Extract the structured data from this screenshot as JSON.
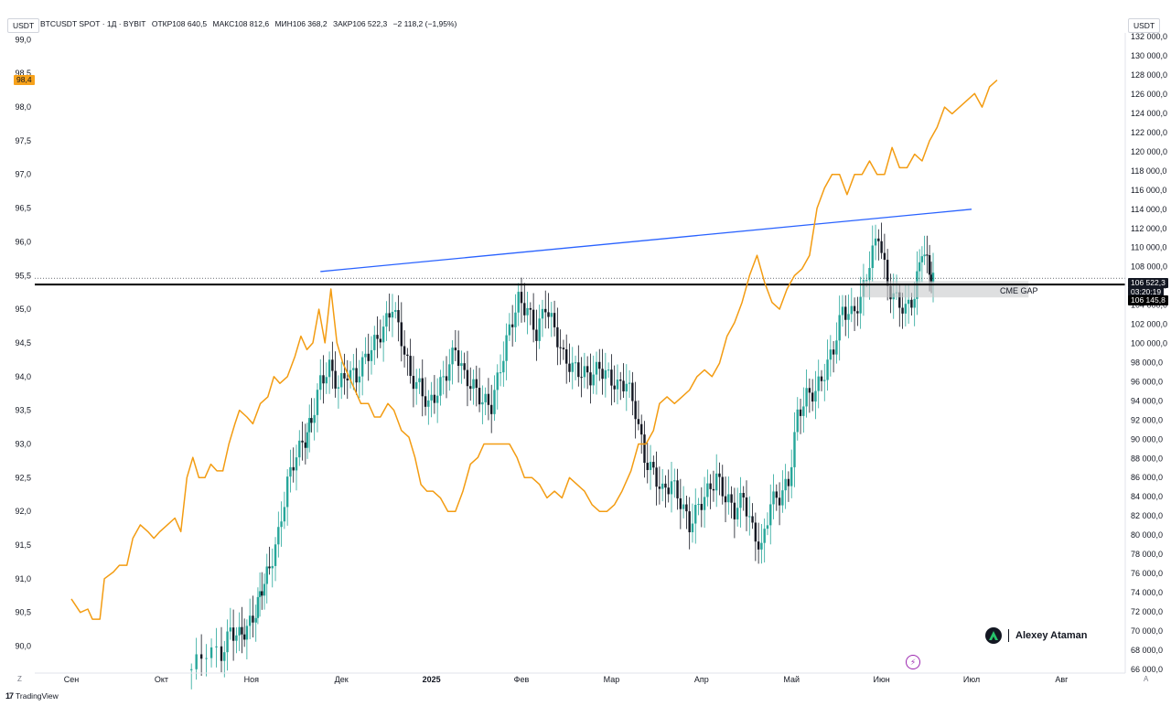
{
  "header": {
    "symbol": "BTCUSDT SPOT · 1Д · BYBIT",
    "open": "ОТКР108 640,5",
    "high": "МАКС108 812,6",
    "low": "МИН106 368,2",
    "close": "ЗАКР106 522,3",
    "change": "−2 118,2 (−1,95%)"
  },
  "units": {
    "left": "USDT",
    "right": "USDT"
  },
  "badges": {
    "left_value": "98,4",
    "price_current": "106 522,3",
    "countdown": "03:20:19",
    "level": "106 145,8"
  },
  "annotation": {
    "cme_gap_label": "CME GAP"
  },
  "watermark": {
    "author": "Alexey Ataman"
  },
  "footer": {
    "brand": "TradingView",
    "corner_left": "Z",
    "corner_right": "A"
  },
  "chart_data": {
    "type": "line",
    "title": "BTCUSDT SPOT · 1Д · BYBIT",
    "x": [
      "Сен",
      "Окт",
      "Ноя",
      "Дек",
      "2025",
      "Фев",
      "Мар",
      "Апр",
      "Май",
      "Июн",
      "Июл",
      "Авг"
    ],
    "left_axis": {
      "label": "USDT",
      "ticks": [
        "99,0",
        "98,5",
        "98,0",
        "97,5",
        "97,0",
        "96,5",
        "96,0",
        "95,5",
        "95,0",
        "94,5",
        "94,0",
        "93,5",
        "93,0",
        "92,5",
        "92,0",
        "91,5",
        "91,0",
        "90,5",
        "90,0"
      ],
      "ylim": [
        89.6,
        99.1
      ]
    },
    "right_axis": {
      "label": "USDT",
      "ticks": [
        "132 000,0",
        "130 000,0",
        "128 000,0",
        "126 000,0",
        "124 000,0",
        "122 000,0",
        "120 000,0",
        "118 000,0",
        "116 000,0",
        "114 000,0",
        "112 000,0",
        "110 000,0",
        "108 000,0",
        "106 000,0",
        "104 000,0",
        "102 000,0",
        "100 000,0",
        "98 000,0",
        "96 000,0",
        "94 000,0",
        "92 000,0",
        "90 000,0",
        "88 000,0",
        "86 000,0",
        "84 000,0",
        "82 000,0",
        "80 000,0",
        "78 000,0",
        "76 000,0",
        "74 000,0",
        "72 000,0",
        "70 000,0",
        "68 000,0",
        "66 000,0"
      ],
      "ylim": [
        65600,
        132400
      ]
    },
    "series": [
      {
        "name": "orange line (left axis)",
        "axis": "left",
        "color": "#f39c12",
        "points": [
          [
            0.0,
            90.7
          ],
          [
            0.3,
            90.5
          ],
          [
            0.55,
            90.55
          ],
          [
            0.7,
            90.4
          ],
          [
            0.95,
            90.4
          ],
          [
            1.1,
            91.0
          ],
          [
            1.4,
            91.1
          ],
          [
            1.6,
            91.2
          ],
          [
            1.85,
            91.2
          ],
          [
            2.05,
            91.6
          ],
          [
            2.3,
            91.8
          ],
          [
            2.55,
            91.7
          ],
          [
            2.75,
            91.6
          ],
          [
            2.95,
            91.7
          ],
          [
            3.2,
            91.8
          ],
          [
            3.45,
            91.9
          ],
          [
            3.65,
            91.7
          ],
          [
            3.85,
            92.5
          ],
          [
            4.05,
            92.8
          ],
          [
            4.25,
            92.5
          ],
          [
            4.45,
            92.5
          ],
          [
            4.65,
            92.7
          ],
          [
            4.85,
            92.6
          ],
          [
            5.05,
            92.6
          ],
          [
            5.25,
            93.0
          ],
          [
            5.45,
            93.3
          ],
          [
            5.6,
            93.5
          ],
          [
            5.85,
            93.4
          ],
          [
            6.05,
            93.3
          ],
          [
            6.3,
            93.6
          ],
          [
            6.55,
            93.7
          ],
          [
            6.75,
            94.0
          ],
          [
            6.95,
            93.9
          ],
          [
            7.2,
            94.0
          ],
          [
            7.45,
            94.3
          ],
          [
            7.65,
            94.6
          ],
          [
            7.85,
            94.4
          ],
          [
            8.05,
            94.5
          ],
          [
            8.25,
            95.0
          ],
          [
            8.45,
            94.5
          ],
          [
            8.65,
            95.3
          ],
          [
            8.85,
            94.5
          ],
          [
            9.05,
            94.2
          ],
          [
            9.25,
            94.0
          ],
          [
            9.45,
            93.8
          ],
          [
            9.65,
            93.6
          ],
          [
            9.9,
            93.6
          ],
          [
            10.1,
            93.4
          ],
          [
            10.3,
            93.4
          ],
          [
            10.55,
            93.6
          ],
          [
            10.75,
            93.5
          ],
          [
            11.0,
            93.2
          ],
          [
            11.25,
            93.1
          ],
          [
            11.45,
            92.8
          ],
          [
            11.65,
            92.4
          ],
          [
            11.85,
            92.3
          ],
          [
            12.05,
            92.3
          ],
          [
            12.3,
            92.2
          ],
          [
            12.55,
            92.0
          ],
          [
            12.8,
            92.0
          ],
          [
            13.05,
            92.3
          ],
          [
            13.3,
            92.7
          ],
          [
            13.55,
            92.8
          ],
          [
            13.75,
            93.0
          ],
          [
            14.05,
            93.0
          ],
          [
            14.35,
            93.0
          ],
          [
            14.6,
            93.0
          ],
          [
            14.85,
            92.8
          ],
          [
            15.1,
            92.5
          ],
          [
            15.35,
            92.5
          ],
          [
            15.6,
            92.4
          ],
          [
            15.85,
            92.2
          ],
          [
            16.1,
            92.3
          ],
          [
            16.35,
            92.2
          ],
          [
            16.6,
            92.5
          ],
          [
            16.85,
            92.4
          ],
          [
            17.1,
            92.3
          ],
          [
            17.35,
            92.1
          ],
          [
            17.6,
            92.0
          ],
          [
            17.85,
            92.0
          ],
          [
            18.1,
            92.1
          ],
          [
            18.35,
            92.3
          ],
          [
            18.65,
            92.6
          ],
          [
            18.9,
            93.0
          ],
          [
            19.15,
            93.0
          ],
          [
            19.4,
            93.2
          ],
          [
            19.6,
            93.6
          ],
          [
            19.85,
            93.7
          ],
          [
            20.1,
            93.6
          ],
          [
            20.35,
            93.7
          ],
          [
            20.6,
            93.8
          ],
          [
            20.85,
            94.0
          ],
          [
            21.1,
            94.1
          ],
          [
            21.35,
            94.0
          ],
          [
            21.6,
            94.2
          ],
          [
            21.85,
            94.6
          ],
          [
            22.1,
            94.8
          ],
          [
            22.35,
            95.1
          ],
          [
            22.6,
            95.5
          ],
          [
            22.85,
            95.8
          ],
          [
            23.1,
            95.4
          ],
          [
            23.35,
            95.1
          ],
          [
            23.6,
            95.0
          ],
          [
            23.85,
            95.3
          ],
          [
            24.1,
            95.5
          ],
          [
            24.35,
            95.6
          ],
          [
            24.6,
            95.8
          ],
          [
            24.85,
            96.5
          ],
          [
            25.1,
            96.8
          ],
          [
            25.35,
            97.0
          ],
          [
            25.6,
            97.0
          ],
          [
            25.85,
            96.7
          ],
          [
            26.1,
            97.0
          ],
          [
            26.35,
            97.0
          ],
          [
            26.6,
            97.2
          ],
          [
            26.85,
            97.0
          ],
          [
            27.1,
            97.0
          ],
          [
            27.35,
            97.4
          ],
          [
            27.6,
            97.1
          ],
          [
            27.85,
            97.1
          ],
          [
            28.1,
            97.3
          ],
          [
            28.35,
            97.2
          ],
          [
            28.6,
            97.5
          ],
          [
            28.85,
            97.7
          ],
          [
            29.1,
            98.0
          ],
          [
            29.35,
            97.9
          ],
          [
            29.6,
            98.0
          ],
          [
            29.85,
            98.1
          ],
          [
            30.1,
            98.2
          ],
          [
            30.35,
            98.0
          ],
          [
            30.6,
            98.3
          ],
          [
            30.85,
            98.4
          ]
        ]
      },
      {
        "name": "BTCUSDT price path (right axis)",
        "axis": "right",
        "color": "#26a69a",
        "points": [
          [
            4.0,
            66000
          ],
          [
            4.5,
            68000
          ],
          [
            5.0,
            67500
          ],
          [
            5.3,
            70000
          ],
          [
            5.6,
            69500
          ],
          [
            5.85,
            70200
          ],
          [
            6.15,
            72000
          ],
          [
            6.35,
            74500
          ],
          [
            6.6,
            76500
          ],
          [
            6.9,
            80000
          ],
          [
            7.2,
            85500
          ],
          [
            7.5,
            88500
          ],
          [
            7.8,
            90000
          ],
          [
            8.0,
            92000
          ],
          [
            8.3,
            96000
          ],
          [
            8.6,
            97500
          ],
          [
            8.9,
            95500
          ],
          [
            9.2,
            97000
          ],
          [
            9.5,
            96500
          ],
          [
            9.8,
            98500
          ],
          [
            10.1,
            100000
          ],
          [
            10.4,
            101500
          ],
          [
            10.7,
            104000
          ],
          [
            11.0,
            100500
          ],
          [
            11.3,
            96500
          ],
          [
            11.6,
            95500
          ],
          [
            11.9,
            93500
          ],
          [
            12.2,
            95000
          ],
          [
            12.5,
            97000
          ],
          [
            12.8,
            99500
          ],
          [
            13.1,
            96500
          ],
          [
            13.4,
            95500
          ],
          [
            13.7,
            94000
          ],
          [
            14.0,
            93500
          ],
          [
            14.3,
            97500
          ],
          [
            14.6,
            101500
          ],
          [
            14.9,
            104500
          ],
          [
            15.2,
            103500
          ],
          [
            15.5,
            101000
          ],
          [
            15.8,
            104000
          ],
          [
            16.1,
            101500
          ],
          [
            16.4,
            98500
          ],
          [
            16.7,
            97500
          ],
          [
            17.0,
            97000
          ],
          [
            17.3,
            96500
          ],
          [
            17.6,
            97500
          ],
          [
            17.9,
            96500
          ],
          [
            18.2,
            95500
          ],
          [
            18.5,
            96000
          ],
          [
            18.8,
            93000
          ],
          [
            19.1,
            88000
          ],
          [
            19.4,
            86500
          ],
          [
            19.7,
            84500
          ],
          [
            20.0,
            85500
          ],
          [
            20.3,
            83500
          ],
          [
            20.6,
            81000
          ],
          [
            20.9,
            83000
          ],
          [
            21.2,
            84500
          ],
          [
            21.5,
            86000
          ],
          [
            21.8,
            84000
          ],
          [
            22.1,
            82500
          ],
          [
            22.4,
            84000
          ],
          [
            22.7,
            80500
          ],
          [
            23.0,
            78500
          ],
          [
            23.3,
            83500
          ],
          [
            23.6,
            84000
          ],
          [
            23.9,
            85500
          ],
          [
            24.2,
            92500
          ],
          [
            24.5,
            94500
          ],
          [
            24.8,
            95000
          ],
          [
            25.1,
            97000
          ],
          [
            25.4,
            99500
          ],
          [
            25.7,
            103500
          ],
          [
            26.0,
            103000
          ],
          [
            26.3,
            104500
          ],
          [
            26.6,
            108500
          ],
          [
            26.9,
            111500
          ],
          [
            27.2,
            106000
          ],
          [
            27.5,
            104500
          ],
          [
            27.8,
            103500
          ],
          [
            28.1,
            105000
          ],
          [
            28.35,
            110000
          ],
          [
            28.6,
            107500
          ],
          [
            28.78,
            106522
          ]
        ]
      }
    ],
    "trendline": {
      "name": "resistance",
      "color": "#2962ff",
      "from": [
        8.3,
        107500
      ],
      "to": [
        30.0,
        114000
      ]
    },
    "horizontal_level": {
      "name": "support",
      "color": "#000000",
      "value": 106145.8
    },
    "zone": {
      "label": "CME GAP",
      "from_x": 26.35,
      "to_x": 31.9,
      "low": 104800,
      "high": 106500
    }
  }
}
